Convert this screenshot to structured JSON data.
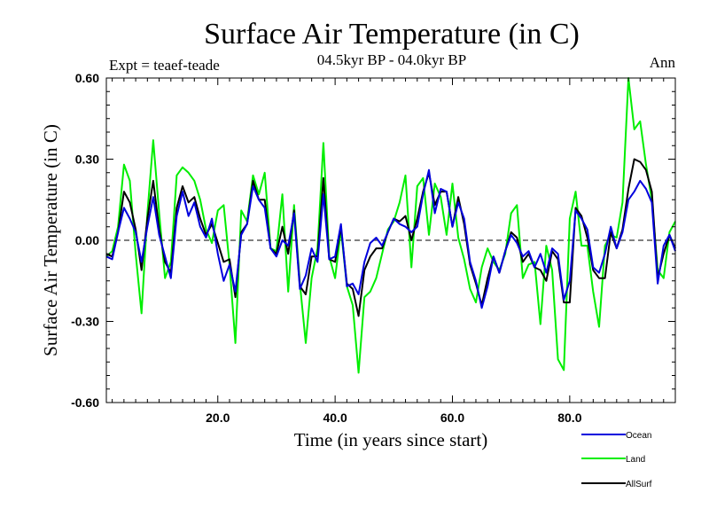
{
  "chart_data": {
    "type": "line",
    "title": "Surface Air Temperature (in C)",
    "subtitle": "04.5kyr BP - 04.0kyr BP",
    "expt_label": "Expt = teaef-teade",
    "season_label": "Ann",
    "xlabel": "Time (in years since start)",
    "ylabel": "Surface Air Temperature (in C)",
    "xlim": [
      1,
      98
    ],
    "ylim": [
      -0.6,
      0.6
    ],
    "xticks": [
      20,
      40,
      60,
      80
    ],
    "xtick_labels": [
      "20.0",
      "40.0",
      "60.0",
      "80.0"
    ],
    "yticks": [
      -0.6,
      -0.3,
      0,
      0.3,
      0.6
    ],
    "ytick_labels": [
      "-0.60",
      "-0.30",
      "0.00",
      "0.30",
      "0.60"
    ],
    "zero_line": true,
    "x": [
      1,
      2,
      3,
      4,
      5,
      6,
      7,
      8,
      9,
      10,
      11,
      12,
      13,
      14,
      15,
      16,
      17,
      18,
      19,
      20,
      21,
      22,
      23,
      24,
      25,
      26,
      27,
      28,
      29,
      30,
      31,
      32,
      33,
      34,
      35,
      36,
      37,
      38,
      39,
      40,
      41,
      42,
      43,
      44,
      45,
      46,
      47,
      48,
      49,
      50,
      51,
      52,
      53,
      54,
      55,
      56,
      57,
      58,
      59,
      60,
      61,
      62,
      63,
      64,
      65,
      66,
      67,
      68,
      69,
      70,
      71,
      72,
      73,
      74,
      75,
      76,
      77,
      78,
      79,
      80,
      81,
      82,
      83,
      84,
      85,
      86,
      87,
      88,
      89,
      90,
      91,
      92,
      93,
      94,
      95,
      96,
      97,
      98
    ],
    "series": [
      {
        "name": "Ocean",
        "color": "#0000dd",
        "values": [
          -0.06,
          -0.07,
          0.03,
          0.12,
          0.08,
          0.03,
          -0.08,
          0.05,
          0.16,
          0.02,
          -0.06,
          -0.14,
          0.09,
          0.18,
          0.09,
          0.14,
          0.05,
          0.01,
          0.08,
          -0.05,
          -0.15,
          -0.09,
          -0.19,
          0.02,
          0.06,
          0.2,
          0.15,
          0.12,
          -0.03,
          -0.06,
          0.0,
          -0.02,
          0.1,
          -0.18,
          -0.13,
          -0.03,
          -0.08,
          0.17,
          -0.07,
          -0.06,
          0.06,
          -0.17,
          -0.16,
          -0.2,
          -0.08,
          -0.01,
          0.01,
          -0.02,
          0.03,
          0.08,
          0.06,
          0.05,
          0.03,
          0.05,
          0.17,
          0.26,
          0.1,
          0.19,
          0.18,
          0.05,
          0.14,
          0.08,
          -0.08,
          -0.15,
          -0.25,
          -0.17,
          -0.06,
          -0.12,
          -0.04,
          0.02,
          -0.01,
          -0.06,
          -0.04,
          -0.1,
          -0.05,
          -0.12,
          -0.03,
          -0.05,
          -0.22,
          -0.15,
          0.11,
          0.08,
          0.04,
          -0.1,
          -0.12,
          -0.05,
          0.05,
          -0.03,
          0.03,
          0.15,
          0.18,
          0.22,
          0.19,
          0.14,
          -0.16,
          -0.02,
          0.02,
          -0.04
        ]
      },
      {
        "name": "Land",
        "color": "#00ee00",
        "values": [
          -0.06,
          -0.04,
          0.05,
          0.28,
          0.22,
          -0.05,
          -0.27,
          0.1,
          0.37,
          0.1,
          -0.14,
          -0.08,
          0.24,
          0.27,
          0.25,
          0.22,
          0.15,
          0.04,
          -0.01,
          0.11,
          0.13,
          -0.09,
          -0.38,
          0.11,
          0.07,
          0.24,
          0.17,
          0.25,
          -0.03,
          -0.04,
          0.17,
          -0.19,
          0.13,
          -0.16,
          -0.38,
          -0.14,
          -0.03,
          0.36,
          -0.06,
          -0.14,
          0.04,
          -0.17,
          -0.24,
          -0.49,
          -0.21,
          -0.19,
          -0.14,
          -0.05,
          0.04,
          0.07,
          0.14,
          0.24,
          -0.1,
          0.2,
          0.23,
          0.02,
          0.21,
          0.16,
          0.02,
          0.21,
          0.01,
          -0.07,
          -0.18,
          -0.23,
          -0.1,
          -0.03,
          -0.08,
          -0.11,
          -0.05,
          0.1,
          0.13,
          -0.14,
          -0.09,
          -0.08,
          -0.31,
          -0.02,
          -0.11,
          -0.44,
          -0.48,
          0.08,
          0.18,
          -0.02,
          -0.02,
          -0.19,
          -0.32,
          -0.02,
          0.02,
          0.01,
          0.14,
          0.6,
          0.41,
          0.44,
          0.28,
          0.15,
          -0.11,
          -0.14,
          0.03,
          0.07
        ]
      },
      {
        "name": "AllSurf",
        "color": "#000000",
        "values": [
          -0.05,
          -0.06,
          0.03,
          0.18,
          0.14,
          0.04,
          -0.11,
          0.08,
          0.22,
          0.04,
          -0.08,
          -0.12,
          0.12,
          0.2,
          0.14,
          0.16,
          0.08,
          0.02,
          0.06,
          -0.01,
          -0.08,
          -0.07,
          -0.21,
          0.03,
          0.06,
          0.22,
          0.15,
          0.15,
          -0.03,
          -0.05,
          0.05,
          -0.05,
          0.11,
          -0.17,
          -0.2,
          -0.06,
          -0.06,
          0.23,
          -0.07,
          -0.08,
          0.05,
          -0.16,
          -0.18,
          -0.28,
          -0.11,
          -0.06,
          -0.03,
          -0.03,
          0.03,
          0.08,
          0.07,
          0.09,
          0.0,
          0.08,
          0.18,
          0.25,
          0.13,
          0.18,
          0.18,
          0.05,
          0.16,
          0.06,
          -0.09,
          -0.16,
          -0.24,
          -0.14,
          -0.06,
          -0.12,
          -0.04,
          0.03,
          0.01,
          -0.08,
          -0.05,
          -0.1,
          -0.11,
          -0.15,
          -0.04,
          -0.07,
          -0.23,
          -0.23,
          0.12,
          0.09,
          0.01,
          -0.11,
          -0.14,
          -0.14,
          0.03,
          -0.03,
          0.04,
          0.19,
          0.3,
          0.29,
          0.26,
          0.18,
          -0.14,
          -0.05,
          0.02,
          -0.03
        ]
      }
    ],
    "legend_position": "bottom-right"
  }
}
